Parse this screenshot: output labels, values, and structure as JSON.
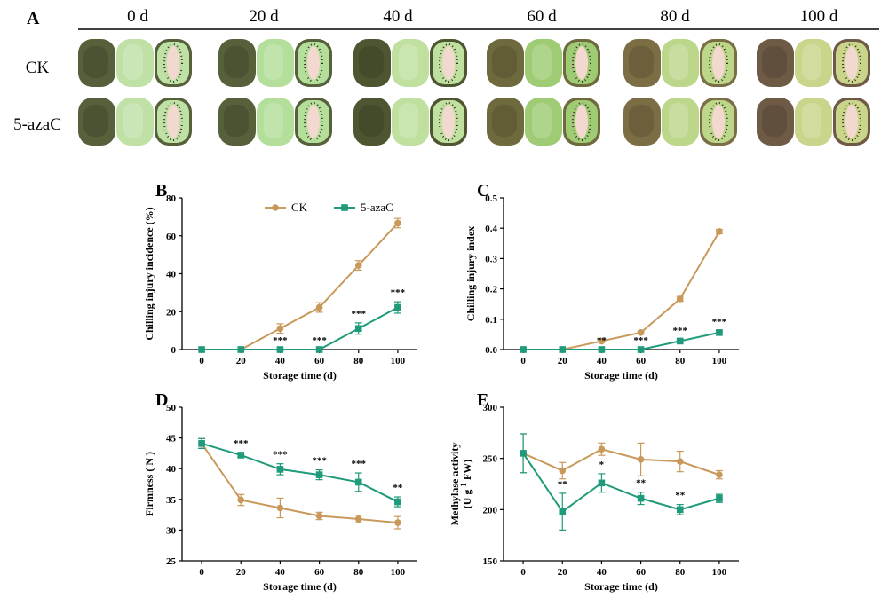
{
  "panel_a": {
    "label": "A",
    "days": [
      "0 d",
      "20 d",
      "40 d",
      "60 d",
      "80 d",
      "100 d"
    ],
    "rows": [
      "CK",
      "5-azaC"
    ]
  },
  "legend": [
    "CK",
    "5-azaC"
  ],
  "colors": {
    "ck": "#c8995a",
    "aza": "#1f9a7a"
  },
  "chart_data": [
    {
      "id": "B",
      "type": "line",
      "label": "B",
      "xlabel": "Storage time (d)",
      "ylabel": "Chilling injury incidence (%)",
      "x": [
        0,
        20,
        40,
        60,
        80,
        100
      ],
      "ylim": [
        0,
        80
      ],
      "yticks": [
        0,
        20,
        40,
        60,
        80
      ],
      "legend_position": "top",
      "series": [
        {
          "name": "CK",
          "values": [
            0,
            0,
            11.1,
            22.2,
            44.4,
            66.7
          ],
          "err": [
            0,
            0,
            2.5,
            2.5,
            2.5,
            2.5
          ]
        },
        {
          "name": "5-azaC",
          "values": [
            0,
            0,
            0,
            0,
            11.1,
            22.2
          ],
          "err": [
            0,
            0,
            0,
            0,
            3,
            3
          ]
        }
      ],
      "significance": [
        "",
        "",
        "***",
        "***",
        "***",
        "***"
      ]
    },
    {
      "id": "C",
      "type": "line",
      "label": "C",
      "xlabel": "Storage time (d)",
      "ylabel": "Chilling injury index",
      "x": [
        0,
        20,
        40,
        60,
        80,
        100
      ],
      "ylim": [
        0,
        0.5
      ],
      "yticks": [
        "0.0",
        "0.1",
        "0.2",
        "0.3",
        "0.4",
        "0.5"
      ],
      "series": [
        {
          "name": "CK",
          "values": [
            0,
            0,
            0.028,
            0.056,
            0.167,
            0.389
          ],
          "err": [
            0,
            0,
            0.004,
            0.005,
            0.008,
            0.007
          ]
        },
        {
          "name": "5-azaC",
          "values": [
            0,
            0,
            0,
            0,
            0.028,
            0.056
          ],
          "err": [
            0,
            0,
            0,
            0,
            0.004,
            0.005
          ]
        }
      ],
      "significance": [
        "",
        "",
        "**",
        "***",
        "***",
        "***"
      ]
    },
    {
      "id": "D",
      "type": "line",
      "label": "D",
      "xlabel": "Storage time (d)",
      "ylabel": "Firmness ( N )",
      "x": [
        0,
        20,
        40,
        60,
        80,
        100
      ],
      "ylim": [
        25,
        50
      ],
      "yticks": [
        25,
        30,
        35,
        40,
        45,
        50
      ],
      "series": [
        {
          "name": "CK",
          "values": [
            44.1,
            34.9,
            33.6,
            32.3,
            31.8,
            31.2
          ],
          "err": [
            0.8,
            0.9,
            1.6,
            0.6,
            0.6,
            1.0
          ]
        },
        {
          "name": "5-azaC",
          "values": [
            44.1,
            42.2,
            39.9,
            39.0,
            37.8,
            34.6
          ],
          "err": [
            0.8,
            0.4,
            0.9,
            0.8,
            1.5,
            0.8
          ]
        }
      ],
      "significance": [
        "",
        "***",
        "***",
        "***",
        "***",
        "**"
      ]
    },
    {
      "id": "E",
      "type": "line",
      "label": "E",
      "xlabel": "Storage time (d)",
      "ylabel": "Methylase activity",
      "ylabel2_prefix": "(U g",
      "ylabel2_sup": "-1",
      "ylabel2_suffix": " FW)",
      "x": [
        0,
        20,
        40,
        60,
        80,
        100
      ],
      "ylim": [
        150,
        300
      ],
      "yticks": [
        150,
        200,
        250,
        300
      ],
      "series": [
        {
          "name": "CK",
          "values": [
            255,
            238,
            259,
            249,
            247,
            234
          ],
          "err": [
            19,
            8,
            6,
            16,
            10,
            4
          ]
        },
        {
          "name": "5-azaC",
          "values": [
            255,
            198,
            226,
            211,
            200,
            211
          ],
          "err": [
            19,
            18,
            9,
            6,
            5,
            4
          ]
        }
      ],
      "significance": [
        "",
        "**",
        "*",
        "**",
        "**",
        ""
      ]
    }
  ]
}
